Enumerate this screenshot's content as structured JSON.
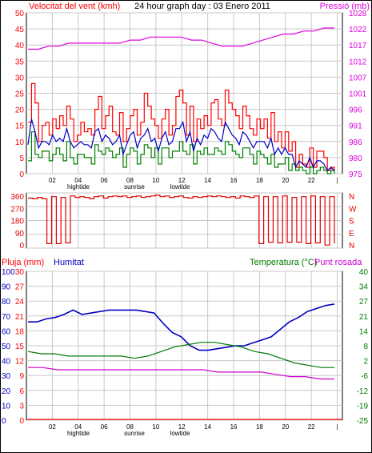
{
  "colors": {
    "wind": "#ff0000",
    "wind_avg": "#0000c0",
    "wind_min": "#008000",
    "pressure": "#e000e0",
    "direction": "#e00000",
    "rain": "#ff0000",
    "humidity": "#0000c0",
    "temperature": "#007a00",
    "dewpoint": "#d000d0",
    "grid": "#c8c8c8",
    "frame": "#000000"
  },
  "header": {
    "left": "Velocitat del vent (kmh)",
    "center": "24 hour graph day : 03 Enero 2011",
    "right": "Pressió (mb)"
  },
  "x_axis": {
    "ticks": [
      "02",
      "04",
      "06",
      "08",
      "10",
      "12",
      "14",
      "16",
      "18",
      "20",
      "22",
      "|"
    ],
    "events": [
      "hightide",
      "sunrise",
      "lowtide"
    ]
  },
  "chart_data": [
    {
      "type": "line",
      "name": "wind",
      "yleft_ticks": [
        "50",
        "45",
        "40",
        "35",
        "30",
        "25",
        "20",
        "15",
        "10",
        "5",
        "0"
      ],
      "yright_ticks": [
        "1028",
        "1022",
        "1017",
        "1012",
        "1007",
        "1001",
        "996",
        "991",
        "986",
        "980",
        "975"
      ],
      "ylim_left": [
        0,
        50
      ],
      "ylim_right": [
        975,
        1028
      ],
      "series": [
        {
          "key": "gust",
          "values": [
            16,
            28,
            22,
            10,
            15,
            16,
            12,
            17,
            14,
            18,
            15,
            21,
            17,
            10,
            12,
            16,
            13,
            14,
            12,
            20,
            24,
            14,
            18,
            21,
            13,
            12,
            19,
            10,
            14,
            18,
            20,
            12,
            16,
            25,
            21,
            17,
            15,
            11,
            17,
            20,
            12,
            15,
            24,
            26,
            22,
            12,
            21,
            10,
            17,
            14,
            18,
            15,
            22,
            23,
            17,
            15,
            26,
            22,
            20,
            18,
            14,
            21,
            18,
            14,
            12,
            17,
            14,
            17,
            11,
            19,
            10,
            13,
            8,
            13,
            7,
            10,
            2,
            6,
            3,
            2,
            8,
            2,
            7,
            7,
            5,
            1,
            2,
            1
          ]
        },
        {
          "key": "average",
          "values": [
            9,
            17,
            13,
            8,
            10,
            10,
            9,
            12,
            10,
            11,
            10,
            14,
            10,
            8,
            9,
            10,
            9,
            9,
            8,
            13,
            14,
            10,
            12,
            11,
            9,
            10,
            12,
            6,
            9,
            12,
            13,
            8,
            11,
            12,
            14,
            10,
            11,
            7,
            11,
            13,
            9,
            10,
            14,
            14,
            16,
            10,
            13,
            7,
            11,
            9,
            12,
            11,
            14,
            13,
            11,
            10,
            16,
            14,
            12,
            11,
            9,
            13,
            12,
            10,
            8,
            10,
            10,
            10,
            8,
            11,
            6,
            8,
            6,
            8,
            6,
            6,
            2,
            4,
            3,
            2,
            5,
            2,
            4,
            4,
            3,
            1,
            2,
            1
          ]
        },
        {
          "key": "minimum",
          "values": [
            4,
            13,
            6,
            5,
            7,
            7,
            4,
            6,
            8,
            6,
            4,
            10,
            5,
            3,
            6,
            6,
            5,
            5,
            3,
            9,
            7,
            6,
            8,
            7,
            5,
            6,
            8,
            2,
            6,
            8,
            7,
            3,
            6,
            9,
            8,
            5,
            8,
            3,
            8,
            8,
            5,
            7,
            7,
            10,
            7,
            6,
            9,
            3,
            7,
            6,
            8,
            6,
            6,
            8,
            7,
            6,
            10,
            9,
            7,
            6,
            5,
            8,
            8,
            6,
            3,
            7,
            6,
            5,
            3,
            6,
            2,
            3,
            3,
            5,
            1,
            3,
            1,
            2,
            1,
            0,
            2,
            0,
            1,
            2,
            1,
            0,
            1,
            0
          ]
        },
        {
          "key": "pressure",
          "values": [
            1016,
            1016,
            1017,
            1017,
            1018,
            1018,
            1018,
            1018,
            1018,
            1018,
            1019,
            1019,
            1020,
            1020,
            1020,
            1020,
            1019,
            1019,
            1018,
            1017,
            1017,
            1017,
            1018,
            1019,
            1020,
            1021,
            1021,
            1022,
            1022,
            1023,
            1023
          ]
        }
      ]
    },
    {
      "type": "line",
      "name": "direction",
      "yleft_ticks": [
        "360",
        "270",
        "180",
        "90",
        "0"
      ],
      "yright_ticks": [
        "N",
        "W",
        "S",
        "E",
        "N"
      ],
      "ylim": [
        0,
        360
      ],
      "values": [
        335,
        330,
        340,
        330,
        20,
        345,
        20,
        340,
        25,
        350,
        340,
        345,
        340,
        330,
        345,
        350,
        335,
        345,
        350,
        345,
        350,
        340,
        345,
        350,
        340,
        345,
        350,
        355,
        345,
        350,
        340,
        345,
        350,
        340,
        335,
        345,
        340,
        345,
        350,
        345,
        350,
        345,
        340,
        345,
        335,
        350,
        345,
        340,
        350,
        20,
        345,
        30,
        345,
        25,
        350,
        30,
        340,
        30,
        345,
        20,
        350,
        25,
        345,
        10,
        345,
        20
      ]
    },
    {
      "type": "line",
      "name": "humidity-temperature",
      "yleft1_ticks": [
        "100",
        "90",
        "80",
        "70",
        "60",
        "50",
        "40",
        "30",
        "20",
        "10",
        "0"
      ],
      "yleft2_ticks": [
        "30",
        "27",
        "24",
        "21",
        "18",
        "15",
        "12",
        "9",
        "6",
        "3",
        "0"
      ],
      "yright_ticks": [
        "40",
        "34",
        "27",
        "21",
        "14",
        "8",
        "2",
        "-6",
        "-12",
        "-19",
        "-25"
      ],
      "left_label_rain": "Pluja (mm)",
      "left_label_humidity": "Humitat",
      "right_label_temp": "Temperatura (°C)",
      "right_label_dew": "Punt rosada",
      "series": [
        {
          "key": "humidity",
          "ylim": [
            0,
            100
          ],
          "values": [
            66,
            66,
            68,
            69,
            71,
            74,
            71,
            72,
            73,
            74,
            74,
            74,
            74,
            73,
            72,
            65,
            59,
            56,
            50,
            47,
            47,
            48,
            49,
            50,
            50,
            52,
            54,
            56,
            61,
            66,
            69,
            73,
            75,
            77,
            78
          ]
        },
        {
          "key": "temperature",
          "ylim": [
            -25,
            40
          ],
          "values": [
            5,
            4,
            4,
            3,
            3,
            3,
            3,
            3,
            2,
            3,
            5,
            7,
            8,
            9,
            9,
            8,
            7,
            5,
            4,
            2,
            0,
            -1,
            -2,
            -2
          ]
        },
        {
          "key": "dewpoint",
          "ylim": [
            -25,
            40
          ],
          "values": [
            -2,
            -2,
            -3,
            -3,
            -3,
            -3,
            -3,
            -3,
            -3,
            -3,
            -3,
            -3,
            -3,
            -4,
            -4,
            -4,
            -4,
            -5,
            -6,
            -6,
            -7,
            -7
          ]
        },
        {
          "key": "rain",
          "ylim": [
            0,
            30
          ],
          "values": [
            0,
            0
          ]
        }
      ]
    }
  ]
}
